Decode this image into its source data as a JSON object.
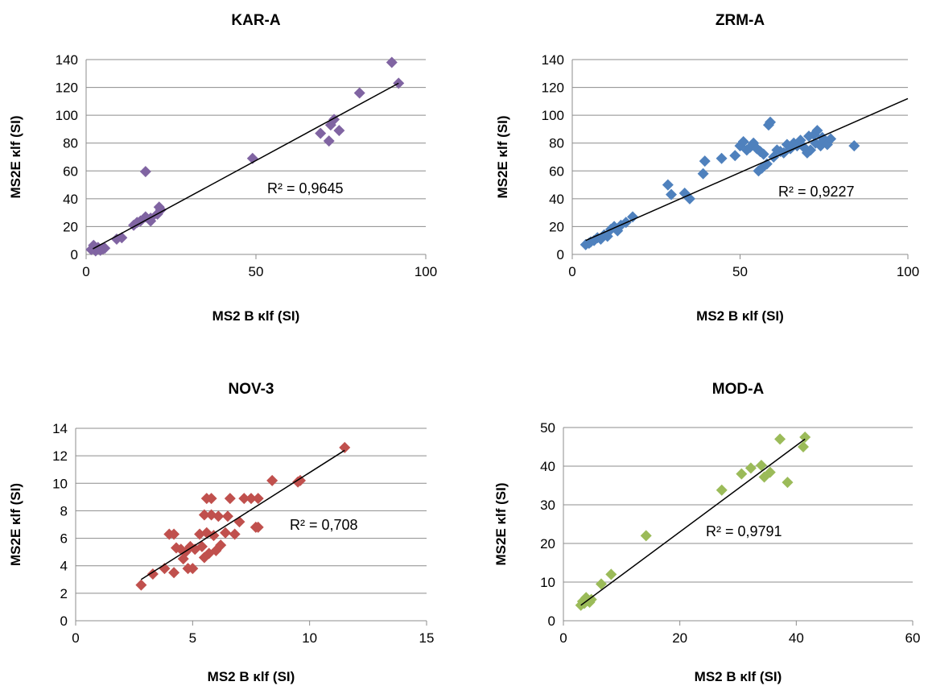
{
  "chart_data": [
    {
      "type": "scatter",
      "title": "KAR-A",
      "xlabel": "MS2 B κlf (SI)",
      "ylabel": "MS2E κlf (SI)",
      "xlim": [
        0,
        100
      ],
      "ylim": [
        0,
        140
      ],
      "xticks": [
        0,
        50,
        100
      ],
      "yticks": [
        0,
        20,
        40,
        60,
        80,
        100,
        120,
        140
      ],
      "grid": "horizontal",
      "color": "#8064A2",
      "r2_label": "R² = 0,9645",
      "trendline": {
        "x": [
          2,
          92
        ],
        "y": [
          4,
          123
        ]
      },
      "points": {
        "x": [
          1.5,
          2.2,
          2.8,
          3.5,
          4.2,
          5.0,
          5.5,
          9,
          10.5,
          14,
          15,
          16,
          17.5,
          17.5,
          19,
          19,
          21,
          21.5,
          22,
          21,
          49,
          69,
          71.5,
          72,
          73,
          74.5,
          80.5,
          90,
          92
        ],
        "y": [
          3.5,
          6.5,
          2.5,
          5.0,
          3.0,
          4.0,
          4.5,
          11,
          12,
          21,
          23,
          24,
          27,
          59.5,
          24,
          26,
          29,
          34,
          32,
          29,
          69,
          87,
          81.5,
          93,
          97,
          89,
          116,
          138,
          123
        ]
      }
    },
    {
      "type": "scatter",
      "title": "ZRM-A",
      "xlabel": "MS2 B κlf (SI)",
      "ylabel": "MS2E κlf (SI)",
      "xlim": [
        0,
        100
      ],
      "ylim": [
        0,
        140
      ],
      "xticks": [
        0,
        50,
        100
      ],
      "yticks": [
        0,
        20,
        40,
        60,
        80,
        100,
        120,
        140
      ],
      "grid": "horizontal",
      "color": "#4F81BD",
      "r2_label": "R² = 0,9227",
      "trendline": {
        "x": [
          4,
          100
        ],
        "y": [
          10,
          112
        ]
      },
      "points": {
        "x": [
          4,
          5,
          5.5,
          6.5,
          7.5,
          8.5,
          9.5,
          10.5,
          11.5,
          12.5,
          13.5,
          14.5,
          16,
          18,
          28.5,
          29.5,
          33.5,
          35,
          39,
          39.5,
          44.5,
          48.5,
          50,
          51,
          52,
          53,
          54,
          55,
          55.5,
          56,
          56.5,
          57,
          58,
          58.5,
          59,
          60,
          61,
          62,
          63,
          64,
          65,
          66,
          67,
          68,
          69,
          70,
          70.5,
          71,
          72,
          72.5,
          73,
          74,
          74.5,
          75,
          76,
          77,
          84
        ],
        "y": [
          7,
          8,
          9,
          10,
          12,
          11,
          14,
          13,
          18,
          20,
          17,
          21,
          23,
          27,
          50,
          43,
          44,
          40,
          58,
          67,
          69,
          71,
          78,
          81,
          75,
          77,
          80,
          76,
          60,
          74,
          62,
          72,
          65,
          93,
          95,
          70,
          75,
          74,
          73,
          79,
          76,
          80,
          78,
          82,
          77,
          73,
          85,
          75,
          86,
          80,
          89,
          78,
          84,
          82,
          79,
          83,
          78
        ]
      }
    },
    {
      "type": "scatter",
      "title": "NOV-3",
      "xlabel": "MS2 B κlf (SI)",
      "ylabel": "MS2E κlf (SI)",
      "xlim": [
        0,
        15
      ],
      "ylim": [
        0,
        14
      ],
      "xticks": [
        0,
        5,
        10,
        15
      ],
      "yticks": [
        0,
        2,
        4,
        6,
        8,
        10,
        12,
        14
      ],
      "grid": "horizontal",
      "color": "#C0504D",
      "r2_label": "R² = 0,708",
      "trendline": {
        "x": [
          2.8,
          11.5
        ],
        "y": [
          3.0,
          12.4
        ]
      },
      "points": {
        "x": [
          2.8,
          3.3,
          3.8,
          4.0,
          4.2,
          4.2,
          4.3,
          4.5,
          4.6,
          4.7,
          4.8,
          4.9,
          5.0,
          5.1,
          5.3,
          5.4,
          5.5,
          5.5,
          5.6,
          5.6,
          5.7,
          5.8,
          5.8,
          5.9,
          6.0,
          6.1,
          6.2,
          6.4,
          6.5,
          6.6,
          6.8,
          7.0,
          7.2,
          7.5,
          7.7,
          7.8,
          7.8,
          8.4,
          9.5,
          9.6,
          11.5
        ],
        "y": [
          2.6,
          3.4,
          3.8,
          6.3,
          3.5,
          6.3,
          5.3,
          5.2,
          4.5,
          5.0,
          3.8,
          5.4,
          3.8,
          5.2,
          6.3,
          5.4,
          4.6,
          7.7,
          8.9,
          6.4,
          4.9,
          7.7,
          8.9,
          6.2,
          5.1,
          7.6,
          5.5,
          6.4,
          7.6,
          8.9,
          6.3,
          7.2,
          8.9,
          8.9,
          6.8,
          8.9,
          6.8,
          10.2,
          10.1,
          10.2,
          12.6
        ]
      }
    },
    {
      "type": "scatter",
      "title": "MOD-A",
      "xlabel": "MS2 B κlf (SI)",
      "ylabel": "MS2E κlf (SI)",
      "xlim": [
        0,
        60
      ],
      "ylim": [
        0,
        50
      ],
      "xticks": [
        0,
        20,
        40,
        60
      ],
      "yticks": [
        0,
        10,
        20,
        30,
        40,
        50
      ],
      "grid": "horizontal",
      "color": "#9BBB59",
      "r2_label": "R² = 0,9791",
      "trendline": {
        "x": [
          3,
          41.5
        ],
        "y": [
          4,
          47
        ]
      },
      "points": {
        "x": [
          3,
          3.3,
          3.6,
          3.9,
          4.2,
          4.5,
          4.8,
          6.5,
          8.2,
          14.2,
          27.2,
          30.6,
          32.2,
          34.0,
          34.5,
          35.5,
          37.2,
          38.5,
          41.2,
          41.5
        ],
        "y": [
          4.0,
          5.0,
          4.5,
          6.0,
          5.2,
          4.8,
          5.5,
          9.5,
          12.0,
          22.0,
          33.8,
          38.0,
          39.5,
          40.2,
          37.2,
          38.4,
          47.0,
          35.8,
          45.0,
          47.5
        ]
      }
    }
  ]
}
